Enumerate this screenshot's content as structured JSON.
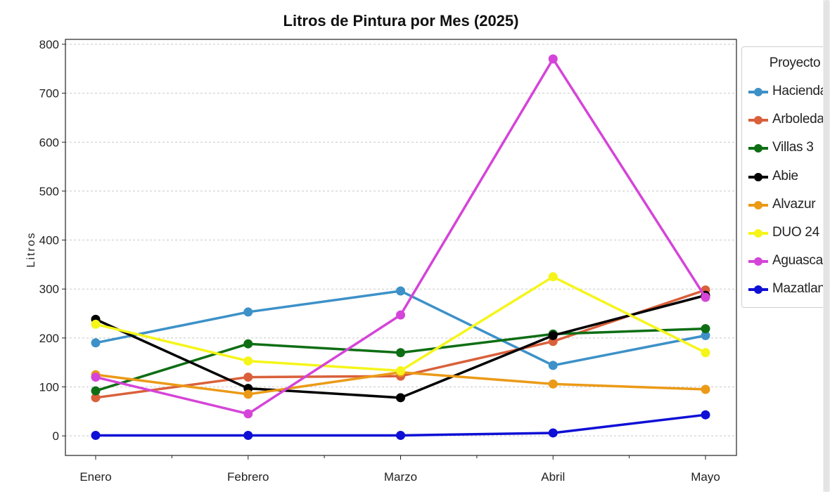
{
  "chart_data": {
    "type": "line",
    "title": "Litros de Pintura por Mes (2025)",
    "xlabel": "",
    "ylabel": "Litros",
    "categories": [
      "Enero",
      "Febrero",
      "Marzo",
      "Abril",
      "Mayo"
    ],
    "ylim": [
      -40,
      810
    ],
    "yticks": [
      0,
      100,
      200,
      300,
      400,
      500,
      600,
      700,
      800
    ],
    "grid": "horizontal-dashed",
    "legend_title": "Proyecto",
    "legend_position": "right",
    "series": [
      {
        "name": "Hacienda S",
        "color": "#3d91c8",
        "values": [
          190,
          253,
          296,
          144,
          205
        ]
      },
      {
        "name": "Arboleda",
        "color": "#d9603b",
        "values": [
          78,
          120,
          122,
          193,
          298
        ]
      },
      {
        "name": "Villas 3",
        "color": "#0e6e14",
        "values": [
          92,
          188,
          170,
          208,
          219
        ]
      },
      {
        "name": "Abie",
        "color": "#000000",
        "values": [
          238,
          97,
          78,
          205,
          287
        ]
      },
      {
        "name": "Alvazur",
        "color": "#eb9a17",
        "values": [
          125,
          85,
          130,
          106,
          95
        ]
      },
      {
        "name": "DUO 24",
        "color": "#f5f51a",
        "values": [
          228,
          153,
          133,
          325,
          170
        ]
      },
      {
        "name": "Aguascalie",
        "color": "#d544d8",
        "values": [
          120,
          45,
          247,
          770,
          283
        ]
      },
      {
        "name": "Mazatlan",
        "color": "#0f0fd6",
        "values": [
          1,
          1,
          1,
          6,
          43
        ]
      }
    ]
  }
}
